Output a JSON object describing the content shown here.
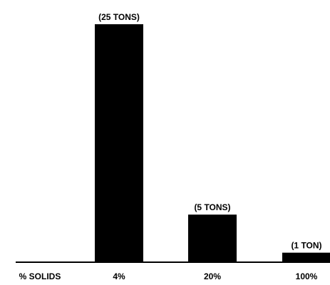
{
  "chart_data": {
    "type": "bar",
    "categories": [
      "4%",
      "20%",
      "100%"
    ],
    "values": [
      25,
      5,
      1
    ],
    "data_labels": [
      "(25 TONS)",
      "(5 TONS)",
      "(1 TON)"
    ],
    "category_axis_title": "% SOLIDS",
    "title": "",
    "xlabel": "",
    "ylabel": "",
    "ylim": [
      0,
      25
    ],
    "grid": false,
    "legend": "none",
    "bar_color": "#000000",
    "axis_color": "#000000"
  }
}
